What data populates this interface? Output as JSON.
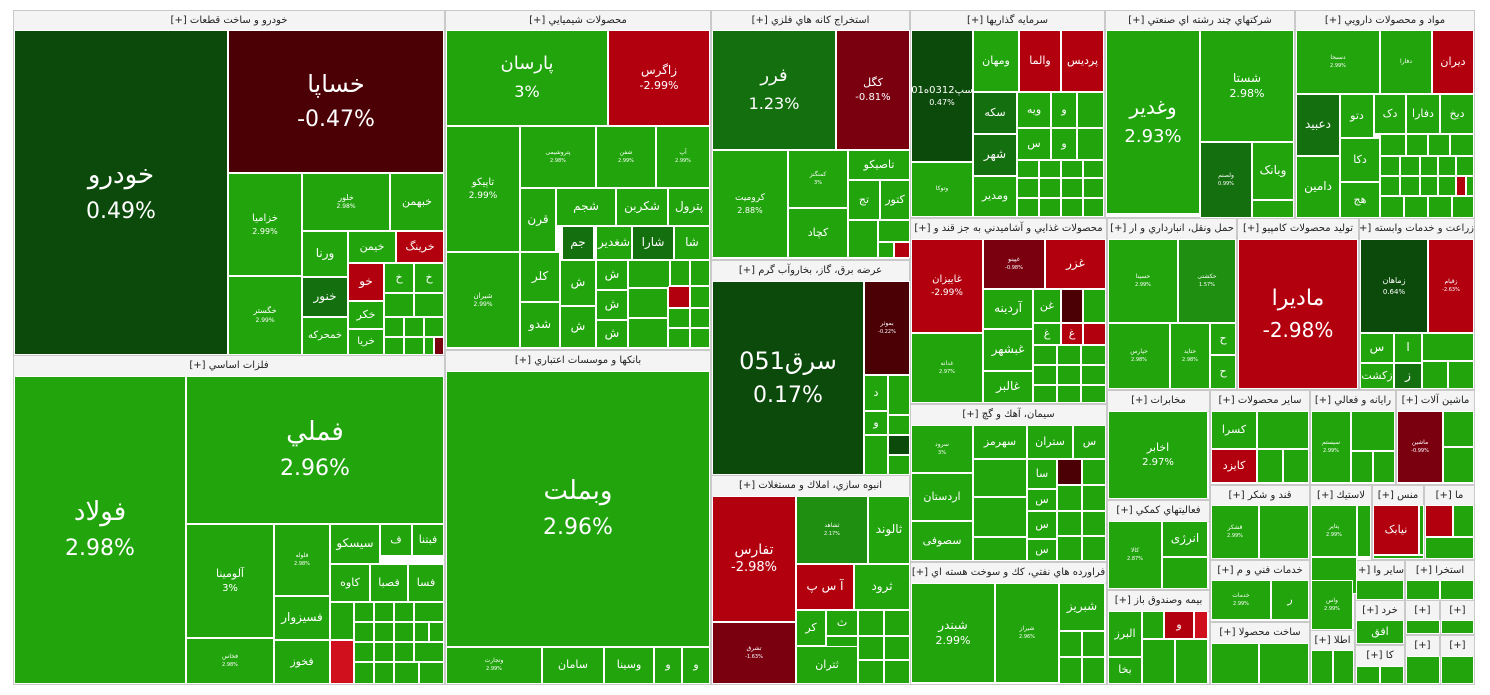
{
  "chart_data": {
    "type": "treemap",
    "colors": {
      "up_strong": "#21a40c",
      "up_mid": "#1e8f10",
      "up_weak": "#14700f",
      "flat_up": "#0b4a0b",
      "down_weak": "#4b0006",
      "down_mid": "#7a0010",
      "down_strong": "#b3000f",
      "down_max": "#d0101c",
      "header_bg": "#f4f4f4"
    },
    "sectors": [
      {
        "name": "خودرو و ساخت قطعات [+]"
      },
      {
        "name": "محصولات شيميايي [+]"
      },
      {
        "name": "استخراج كانه هاي فلزي [+]"
      },
      {
        "name": "سرمايه گذاريها [+]"
      },
      {
        "name": "شركتهاي چند رشته اي صنعتي [+]"
      },
      {
        "name": "مواد و محصولات دارويي [+]"
      },
      {
        "name": "فلزات اساسي [+]"
      },
      {
        "name": "بانكها و موسسات اعتباري [+]"
      },
      {
        "name": "عرضه برق، گاز، بخاروآب گرم [+]"
      },
      {
        "name": "انبوه سازي، املاك و مستغلات [+]"
      },
      {
        "name": "محصولات غذايي و آشاميدني به جز قند و [+]"
      },
      {
        "name": "حمل ونقل، انبارداري و ار [+]"
      },
      {
        "name": "توليد محصولات كامپيو [+]"
      },
      {
        "name": "زراعت و خدمات وابسته [+]"
      },
      {
        "name": "سيمان، آهك و گچ [+]"
      },
      {
        "name": "مخابرات [+]"
      },
      {
        "name": "ساير محصولات [+]"
      },
      {
        "name": "رايانه و فعالي [+]"
      },
      {
        "name": "ماشين آلات [+]"
      },
      {
        "name": "فراورده هاي نفتي، كك و سوخت هسته اي [+]"
      },
      {
        "name": "فعاليتهاي كمكي [+]"
      },
      {
        "name": "قند و شكر [+]"
      },
      {
        "name": "لاستيك [+]"
      },
      {
        "name": "منس [+]"
      },
      {
        "name": "ما [+]"
      },
      {
        "name": "خدمات فني و م [+]"
      },
      {
        "name": "اس [+]"
      },
      {
        "name": "ساير وا [+]"
      },
      {
        "name": "استخرا [+]"
      },
      {
        "name": "بيمه وصندوق باز [+]"
      },
      {
        "name": "ساخت محصولا [+]"
      },
      {
        "name": "خرد [+]"
      },
      {
        "name": "[+]"
      },
      {
        "name": "[+]"
      },
      {
        "name": "اطلا [+]"
      },
      {
        "name": "كا [+]"
      },
      {
        "name": "[+]"
      },
      {
        "name": "[+]"
      }
    ],
    "stocks": [
      {
        "symbol": "خودرو",
        "change": "0.49%",
        "value": 0.49
      },
      {
        "symbol": "خساپا",
        "change": "-0.47%",
        "value": -0.47
      },
      {
        "symbol": "خزامیا",
        "change": "2.99%",
        "value": 2.99
      },
      {
        "symbol": "خلور",
        "change": "2.98%",
        "value": 2.98
      },
      {
        "symbol": "خبهمن",
        "change": "",
        "value": 2.9
      },
      {
        "symbol": "ورنا",
        "change": "",
        "value": 2.9
      },
      {
        "symbol": "خیمن",
        "change": "",
        "value": 2.9
      },
      {
        "symbol": "خرینگ",
        "change": "",
        "value": -2.9
      },
      {
        "symbol": "خگستر",
        "change": "2.99%",
        "value": 2.99
      },
      {
        "symbol": "خنور",
        "change": "",
        "value": 1.0
      },
      {
        "symbol": "خو",
        "change": "",
        "value": -2.9
      },
      {
        "symbol": "خ",
        "change": "",
        "value": 2.9
      },
      {
        "symbol": "خ",
        "change": "",
        "value": 2.9
      },
      {
        "symbol": "خکر",
        "change": "",
        "value": 2.9
      },
      {
        "symbol": "خمحرکه",
        "change": "",
        "value": 2.9
      },
      {
        "symbol": "خریا",
        "change": "",
        "value": 2.9
      },
      {
        "symbol": "پارسان",
        "change": "3%",
        "value": 3.0
      },
      {
        "symbol": "زاگرس",
        "change": "-2.99%",
        "value": -2.99
      },
      {
        "symbol": "تاپیکو",
        "change": "2.99%",
        "value": 2.99
      },
      {
        "symbol": "پتروشیمی",
        "change": "2.98%",
        "value": 2.98
      },
      {
        "symbol": "شفن",
        "change": "2.99%",
        "value": 2.99
      },
      {
        "symbol": "آپ",
        "change": "2.99%",
        "value": 2.99
      },
      {
        "symbol": "شجم",
        "change": "",
        "value": 2.9
      },
      {
        "symbol": "شکربن",
        "change": "",
        "value": 2.9
      },
      {
        "symbol": "پترول",
        "change": "",
        "value": 2.9
      },
      {
        "symbol": "قرن",
        "change": "",
        "value": 2.9
      },
      {
        "symbol": "جم",
        "change": "",
        "value": 1.0
      },
      {
        "symbol": "شغدیر",
        "change": "",
        "value": 2.9
      },
      {
        "symbol": "شارا",
        "change": "",
        "value": 1.0
      },
      {
        "symbol": "شا",
        "change": "",
        "value": 2.9
      },
      {
        "symbol": "شیران",
        "change": "2.99%",
        "value": 2.99
      },
      {
        "symbol": "کلر",
        "change": "",
        "value": 2.9
      },
      {
        "symbol": "ش",
        "change": "",
        "value": 2.9
      },
      {
        "symbol": "ش",
        "change": "",
        "value": 2.9
      },
      {
        "symbol": "شدو",
        "change": "",
        "value": 2.9
      },
      {
        "symbol": "ش",
        "change": "",
        "value": 2.9
      },
      {
        "symbol": "ش",
        "change": "",
        "value": 2.9
      },
      {
        "symbol": "ش",
        "change": "",
        "value": 2.9
      },
      {
        "symbol": "فرر",
        "change": "1.23%",
        "value": 1.23
      },
      {
        "symbol": "کگل",
        "change": "-0.81%",
        "value": -0.81
      },
      {
        "symbol": "کرومیت",
        "change": "2.88%",
        "value": 2.88
      },
      {
        "symbol": "کمنگنز",
        "change": "3%",
        "value": 3.0
      },
      {
        "symbol": "تاصیکو",
        "change": "",
        "value": 2.9
      },
      {
        "symbol": "تج",
        "change": "",
        "value": 2.9
      },
      {
        "symbol": "کتور",
        "change": "",
        "value": 2.9
      },
      {
        "symbol": "کچاد",
        "change": "",
        "value": 2.9
      },
      {
        "symbol": "سپ0312ه01",
        "change": "0.47%",
        "value": 0.47
      },
      {
        "symbol": "ومهان",
        "change": "",
        "value": 2.9
      },
      {
        "symbol": "والما",
        "change": "",
        "value": -2.9
      },
      {
        "symbol": "پردیس",
        "change": "",
        "value": -2.9
      },
      {
        "symbol": "سکه",
        "change": "",
        "value": 1.0
      },
      {
        "symbol": "ویه",
        "change": "",
        "value": 2.9
      },
      {
        "symbol": "و",
        "change": "",
        "value": 2.9
      },
      {
        "symbol": "شهر",
        "change": "",
        "value": 1.0
      },
      {
        "symbol": "س",
        "change": "",
        "value": 2.9
      },
      {
        "symbol": "و",
        "change": "",
        "value": 2.9
      },
      {
        "symbol": "ومدیر",
        "change": "",
        "value": 2.9
      },
      {
        "symbol": "وتوکا",
        "change": "",
        "value": 2.9
      },
      {
        "symbol": "وغدیر",
        "change": "2.93%",
        "value": 2.93
      },
      {
        "symbol": "شستا",
        "change": "2.98%",
        "value": 2.98
      },
      {
        "symbol": "ولصنم",
        "change": "0.99%",
        "value": 0.99
      },
      {
        "symbol": "وبانک",
        "change": "",
        "value": 2.9
      },
      {
        "symbol": "دسبحا",
        "change": "2.99%",
        "value": 2.99
      },
      {
        "symbol": "دفارا",
        "change": "",
        "value": 2.9
      },
      {
        "symbol": "دیران",
        "change": "",
        "value": -2.9
      },
      {
        "symbol": "دعبید",
        "change": "",
        "value": 1.0
      },
      {
        "symbol": "دتو",
        "change": "",
        "value": 2.9
      },
      {
        "symbol": "دک",
        "change": "",
        "value": 2.9
      },
      {
        "symbol": "دفارا",
        "change": "",
        "value": 2.9
      },
      {
        "symbol": "دیخ",
        "change": "",
        "value": 2.9
      },
      {
        "symbol": "دامین",
        "change": "",
        "value": 2.9
      },
      {
        "symbol": "دکا",
        "change": "",
        "value": 2.9
      },
      {
        "symbol": "هج",
        "change": "",
        "value": 2.9
      },
      {
        "symbol": "فولاد",
        "change": "2.98%",
        "value": 2.98
      },
      {
        "symbol": "فملي",
        "change": "2.96%",
        "value": 2.96
      },
      {
        "symbol": "آلومینا",
        "change": "3%",
        "value": 3.0
      },
      {
        "symbol": "فلوله",
        "change": "2.98%",
        "value": 2.98
      },
      {
        "symbol": "سیسکو",
        "change": "",
        "value": 2.9
      },
      {
        "symbol": "ف",
        "change": "",
        "value": 2.9
      },
      {
        "symbol": "فبتنا",
        "change": "",
        "value": 2.9
      },
      {
        "symbol": "کاوه",
        "change": "",
        "value": 2.9
      },
      {
        "symbol": "فصبا",
        "change": "",
        "value": 2.9
      },
      {
        "symbol": "فسا",
        "change": "",
        "value": 2.9
      },
      {
        "symbol": "فسیزوار",
        "change": "",
        "value": 2.9
      },
      {
        "symbol": "فخاس",
        "change": "2.98%",
        "value": 2.98
      },
      {
        "symbol": "فخوز",
        "change": "",
        "value": 2.9
      },
      {
        "symbol": "وبملت",
        "change": "2.96%",
        "value": 2.96
      },
      {
        "symbol": "وتجارت",
        "change": "2.99%",
        "value": 2.99
      },
      {
        "symbol": "سامان",
        "change": "",
        "value": 2.9
      },
      {
        "symbol": "وسینا",
        "change": "",
        "value": 2.9
      },
      {
        "symbol": "و",
        "change": "",
        "value": 2.9
      },
      {
        "symbol": "و",
        "change": "",
        "value": 2.9
      },
      {
        "symbol": "سرق051",
        "change": "0.17%",
        "value": 0.17
      },
      {
        "symbol": "بموثر",
        "change": "-0.22%",
        "value": -0.22
      },
      {
        "symbol": "د",
        "change": "",
        "value": 2.9
      },
      {
        "symbol": "و",
        "change": "",
        "value": 2.9
      },
      {
        "symbol": "تفارس",
        "change": "-2.98%",
        "value": -2.98
      },
      {
        "symbol": "ثشاهد",
        "change": "2.17%",
        "value": 2.17
      },
      {
        "symbol": "ثالوند",
        "change": "",
        "value": 2.9
      },
      {
        "symbol": "آ س پ",
        "change": "",
        "value": -2.9
      },
      {
        "symbol": "ثرود",
        "change": "",
        "value": 2.9
      },
      {
        "symbol": "تشرق",
        "change": "-1.63%",
        "value": -1.63
      },
      {
        "symbol": "کر",
        "change": "",
        "value": 2.9
      },
      {
        "symbol": "ث",
        "change": "",
        "value": 2.9
      },
      {
        "symbol": "ث",
        "change": "",
        "value": 2.9
      },
      {
        "symbol": "ثتران",
        "change": "",
        "value": 2.9
      },
      {
        "symbol": "غاییزان",
        "change": "-2.99%",
        "value": -2.99
      },
      {
        "symbol": "غپینو",
        "change": "-0.98%",
        "value": -0.98
      },
      {
        "symbol": "غزر",
        "change": "",
        "value": -2.9
      },
      {
        "symbol": "آردینه",
        "change": "",
        "value": 2.9
      },
      {
        "symbol": "غن",
        "change": "",
        "value": 2.9
      },
      {
        "symbol": "غ",
        "change": "",
        "value": 2.9
      },
      {
        "symbol": "غ",
        "change": "",
        "value": -2.9
      },
      {
        "symbol": "غدانه",
        "change": "2.97%",
        "value": 2.97
      },
      {
        "symbol": "غبشهر",
        "change": "",
        "value": 2.9
      },
      {
        "symbol": "غالبر",
        "change": "",
        "value": 2.9
      },
      {
        "symbol": "حسینا",
        "change": "2.99%",
        "value": 2.99
      },
      {
        "symbol": "حکشتی",
        "change": "1.57%",
        "value": 1.57
      },
      {
        "symbol": "حپارس",
        "change": "2.98%",
        "value": 2.98
      },
      {
        "symbol": "حتاید",
        "change": "2.98%",
        "value": 2.98
      },
      {
        "symbol": "ح",
        "change": "",
        "value": 2.9
      },
      {
        "symbol": "ح",
        "change": "",
        "value": 2.9
      },
      {
        "symbol": "مادیرا",
        "change": "-2.98%",
        "value": -2.98
      },
      {
        "symbol": "زماهان",
        "change": "0.64%",
        "value": 0.64
      },
      {
        "symbol": "زقیام",
        "change": "-2.63%",
        "value": -2.63
      },
      {
        "symbol": "س",
        "change": "",
        "value": 2.9
      },
      {
        "symbol": "ا",
        "change": "",
        "value": 2.9
      },
      {
        "symbol": "زکشت",
        "change": "",
        "value": 2.9
      },
      {
        "symbol": "ز",
        "change": "",
        "value": 1.0
      },
      {
        "symbol": "سرود",
        "change": "3%",
        "value": 3.0
      },
      {
        "symbol": "سهرمز",
        "change": "",
        "value": 2.9
      },
      {
        "symbol": "ستران",
        "change": "",
        "value": 2.9
      },
      {
        "symbol": "س",
        "change": "",
        "value": 2.9
      },
      {
        "symbol": "سا",
        "change": "",
        "value": 2.9
      },
      {
        "symbol": "اردستان",
        "change": "",
        "value": 2.9
      },
      {
        "symbol": "س",
        "change": "",
        "value": 2.9
      },
      {
        "symbol": "س",
        "change": "",
        "value": 2.9
      },
      {
        "symbol": "سصوفی",
        "change": "",
        "value": 2.9
      },
      {
        "symbol": "س",
        "change": "",
        "value": 2.9
      },
      {
        "symbol": "اخابر",
        "change": "2.97%",
        "value": 2.97
      },
      {
        "symbol": "کسرا",
        "change": "",
        "value": 2.9
      },
      {
        "symbol": "کایزد",
        "change": "",
        "value": -2.9
      },
      {
        "symbol": "سیستم",
        "change": "2.99%",
        "value": 2.99
      },
      {
        "symbol": "ماشین",
        "change": "-0.99%",
        "value": -0.99
      },
      {
        "symbol": "شبندر",
        "change": "2.99%",
        "value": 2.99
      },
      {
        "symbol": "شیراز",
        "change": "2.96%",
        "value": 2.96
      },
      {
        "symbol": "شبریز",
        "change": "",
        "value": 2.9
      },
      {
        "symbol": "کالا",
        "change": "2.87%",
        "value": 2.87
      },
      {
        "symbol": "انرژی",
        "change": "",
        "value": 2.9
      },
      {
        "symbol": "قشکر",
        "change": "2.99%",
        "value": 2.99
      },
      {
        "symbol": "پتایر",
        "change": "2.99%",
        "value": 2.99
      },
      {
        "symbol": "نیابک",
        "change": "",
        "value": -2.9
      },
      {
        "symbol": "خدمات",
        "change": "2.99%",
        "value": 2.99
      },
      {
        "symbol": "ر",
        "change": "",
        "value": 2.9
      },
      {
        "symbol": "واس",
        "change": "2.99%",
        "value": 2.99
      },
      {
        "symbol": "البرز",
        "change": "",
        "value": 2.9
      },
      {
        "symbol": "و",
        "change": "",
        "value": -2.9
      },
      {
        "symbol": "بخا",
        "change": "",
        "value": 2.9
      },
      {
        "symbol": "افق",
        "change": "",
        "value": 2.9
      }
    ]
  }
}
